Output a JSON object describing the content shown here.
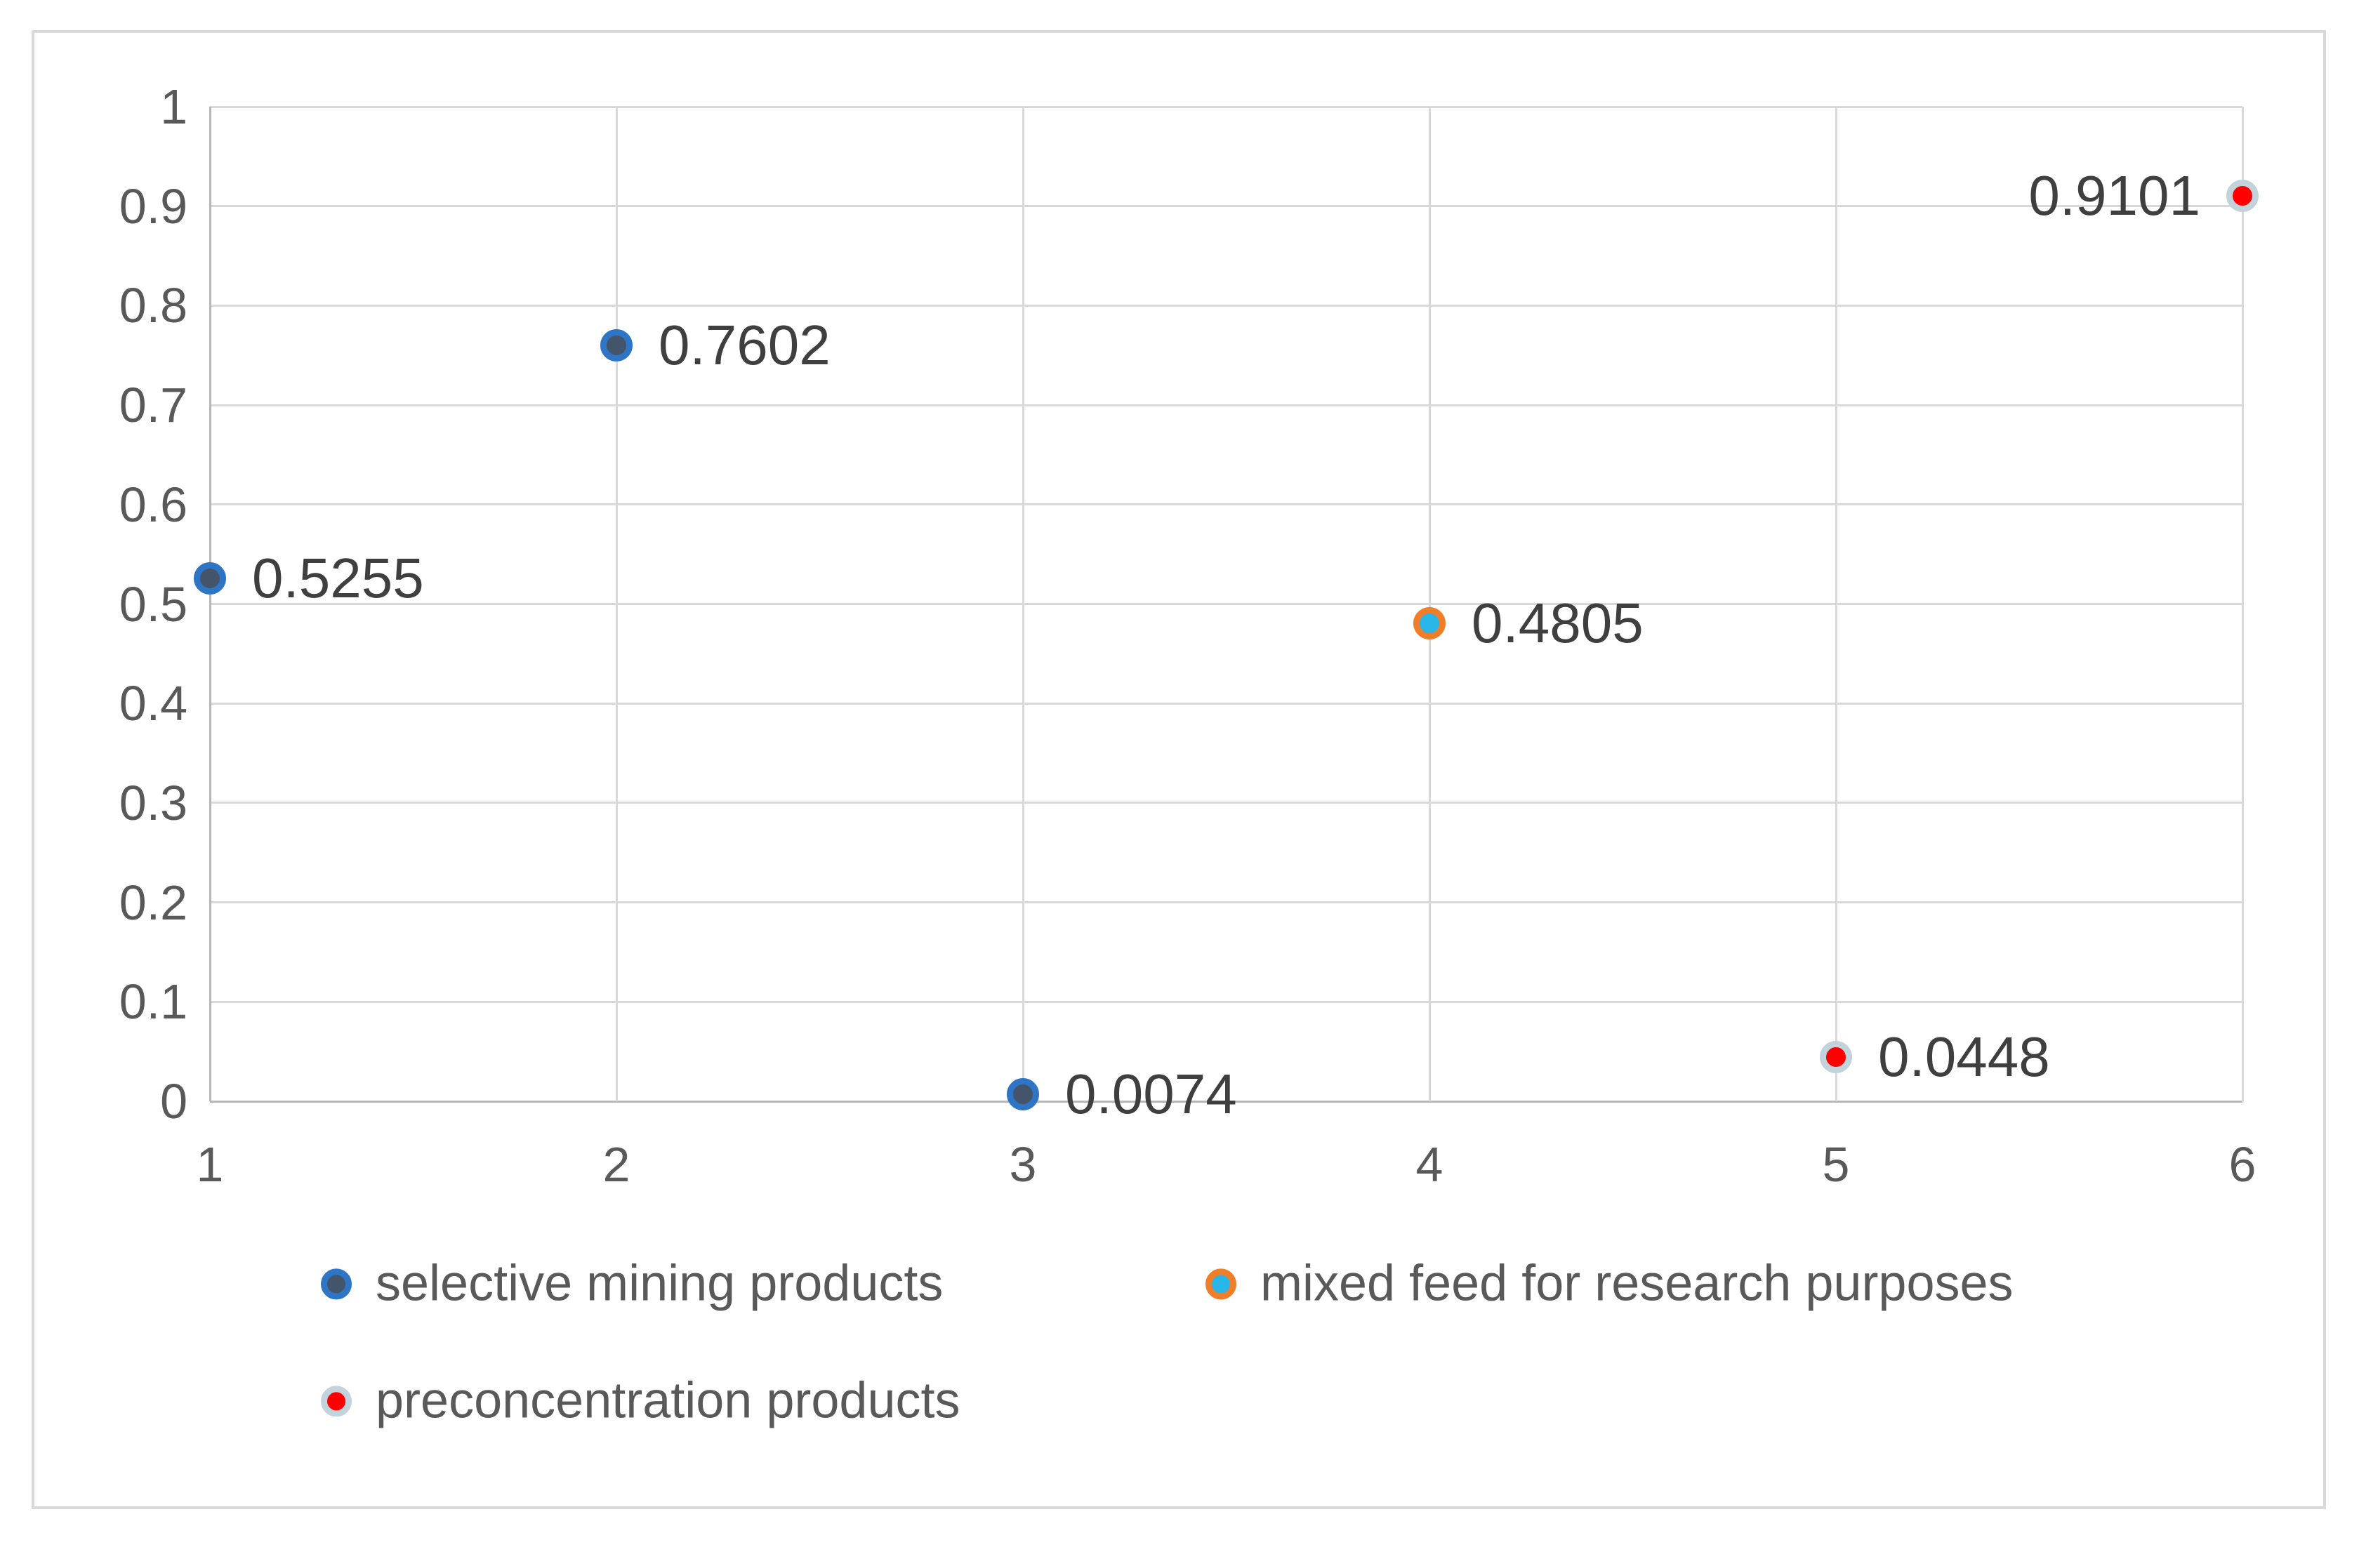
{
  "figure": {
    "background": "#ffffff",
    "border_color": "#d9d9d9"
  },
  "styles": {
    "gridline_color": "#d9d9d9",
    "axis_line_color": "#b7b7b7",
    "tick_text_color": "#595959",
    "data_label_color": "#3f3f3f",
    "legend_text_color": "#595959"
  },
  "chart_data": {
    "type": "scatter",
    "title": "",
    "xlabel": "",
    "ylabel": "",
    "xlim": [
      1,
      6
    ],
    "ylim": [
      0,
      1
    ],
    "grid": true,
    "x_ticks": [
      {
        "value": 1,
        "label": "1"
      },
      {
        "value": 2,
        "label": "2"
      },
      {
        "value": 3,
        "label": "3"
      },
      {
        "value": 4,
        "label": "4"
      },
      {
        "value": 5,
        "label": "5"
      },
      {
        "value": 6,
        "label": "6"
      }
    ],
    "y_ticks": [
      {
        "value": 0,
        "label": "0"
      },
      {
        "value": 0.1,
        "label": "0.1"
      },
      {
        "value": 0.2,
        "label": "0.2"
      },
      {
        "value": 0.3,
        "label": "0.3"
      },
      {
        "value": 0.4,
        "label": "0.4"
      },
      {
        "value": 0.5,
        "label": "0.5"
      },
      {
        "value": 0.6,
        "label": "0.6"
      },
      {
        "value": 0.7,
        "label": "0.7"
      },
      {
        "value": 0.8,
        "label": "0.8"
      },
      {
        "value": 0.9,
        "label": "0.9"
      },
      {
        "value": 1,
        "label": "1"
      }
    ],
    "series": [
      {
        "name": "selective mining products",
        "marker_fill": "#44546a",
        "marker_border": "#2e75c6",
        "points": [
          {
            "x": 1,
            "y": 0.5255,
            "label": "0.5255",
            "label_side": "right"
          },
          {
            "x": 2,
            "y": 0.7602,
            "label": "0.7602",
            "label_side": "right"
          },
          {
            "x": 3,
            "y": 0.0074,
            "label": "0.0074",
            "label_side": "right"
          }
        ]
      },
      {
        "name": "mixed feed for research purposes",
        "marker_fill": "#29b5e8",
        "marker_border": "#f07e28",
        "points": [
          {
            "x": 4,
            "y": 0.4805,
            "label": "0.4805",
            "label_side": "right"
          }
        ]
      },
      {
        "name": "preconcentration products",
        "marker_fill": "#ff0000",
        "marker_border": "#c2d3dc",
        "points": [
          {
            "x": 5,
            "y": 0.0448,
            "label": "0.0448",
            "label_side": "right"
          },
          {
            "x": 6,
            "y": 0.9101,
            "label": "0.9101",
            "label_side": "left"
          }
        ]
      }
    ],
    "legend": {
      "position": "bottom",
      "rows": [
        [
          {
            "series": 0
          },
          {
            "series": 1
          }
        ],
        [
          {
            "series": 2
          }
        ]
      ]
    }
  }
}
